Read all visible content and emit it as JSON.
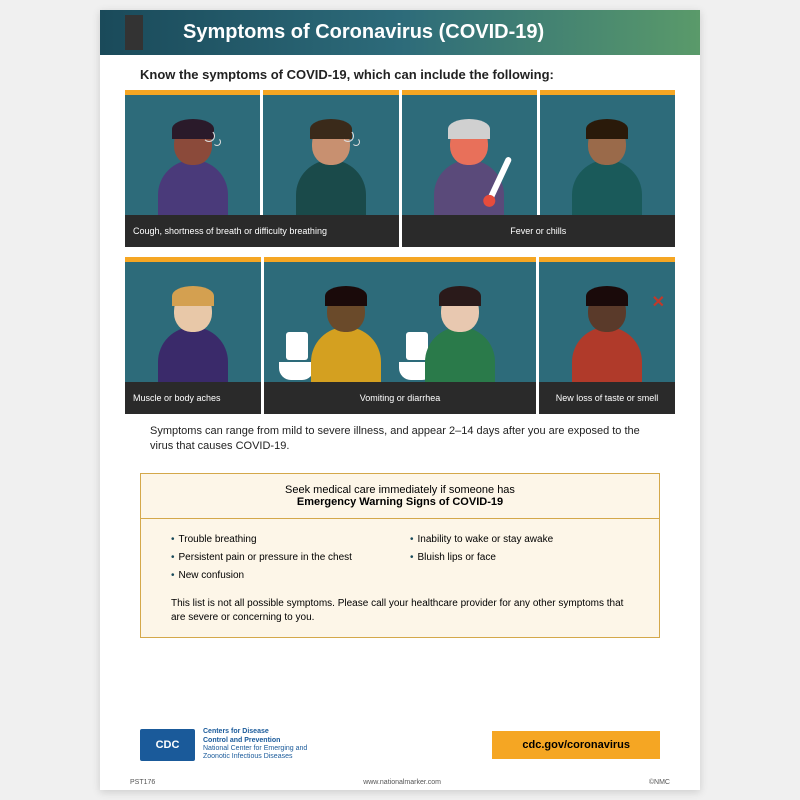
{
  "header": {
    "title": "Symptoms of Coronavirus (COVID-19)"
  },
  "intro": "Know the symptoms of COVID-19, which can include the following:",
  "colors": {
    "tile_bg": "#2d6b7a",
    "accent": "#f5a623",
    "label_bg": "#2a2a2a",
    "header_grad_start": "#1a4a5a",
    "header_grad_end": "#5a9a6a",
    "warning_bg": "#fdf6e8",
    "warning_border": "#d4a84a",
    "cdc_blue": "#1a5a9a"
  },
  "row1": {
    "labels": [
      "Cough, shortness of breath or difficulty breathing",
      "Fever or chills"
    ],
    "people": [
      {
        "skin": "#8b4a3a",
        "hair": "#2a1a2a",
        "shirt": "#4a3a7a"
      },
      {
        "skin": "#c89070",
        "hair": "#3a2a1a",
        "shirt": "#1a4a4a"
      },
      {
        "skin": "#e8b090",
        "hair": "#d0d0d0",
        "shirt": "#5a4a7a",
        "fever": true,
        "thermometer": true
      },
      {
        "skin": "#9a6a4a",
        "hair": "#2a1a0a",
        "shirt": "#1a5a5a"
      }
    ]
  },
  "row2": {
    "cards": [
      {
        "label": "Muscle or body aches",
        "people": [
          {
            "skin": "#e8c8a8",
            "hair": "#d4a050",
            "shirt": "#3a2a6a"
          }
        ]
      },
      {
        "label": "Vomiting or diarrhea",
        "people": [
          {
            "skin": "#6a4a2a",
            "hair": "#1a0a0a",
            "shirt": "#d4a020",
            "pants": "#1a1a1a"
          },
          {
            "skin": "#e8c8b0",
            "hair": "#2a1a1a",
            "shirt": "#2a7a4a"
          }
        ],
        "toilets": true
      },
      {
        "label": "New loss of taste or smell",
        "people": [
          {
            "skin": "#5a3a2a",
            "hair": "#1a0a0a",
            "shirt": "#b03a2a"
          }
        ],
        "cross": true
      }
    ]
  },
  "note": "Symptoms can range from mild to severe illness, and appear 2–14 days after you are exposed to the virus that causes COVID-19.",
  "warning": {
    "line1": "Seek medical care immediately if someone has",
    "line2": "Emergency Warning Signs of COVID-19",
    "col1": [
      "Trouble breathing",
      "Persistent pain or pressure in the chest",
      "New confusion"
    ],
    "col2": [
      "Inability to wake or stay awake",
      "Bluish lips or face"
    ],
    "footer": "This list is not all possible symptoms. Please call your healthcare provider for any other symptoms that are severe or concerning to you."
  },
  "footer": {
    "cdc_label": "CDC",
    "cdc_line1": "Centers for Disease",
    "cdc_line2": "Control and Prevention",
    "cdc_line3": "National Center for Emerging and",
    "cdc_line4": "Zoonotic Infectious Diseases",
    "url": "cdc.gov/coronavirus",
    "code": "PST176",
    "site": "www.nationalmarker.com",
    "brand": "©NMC"
  }
}
